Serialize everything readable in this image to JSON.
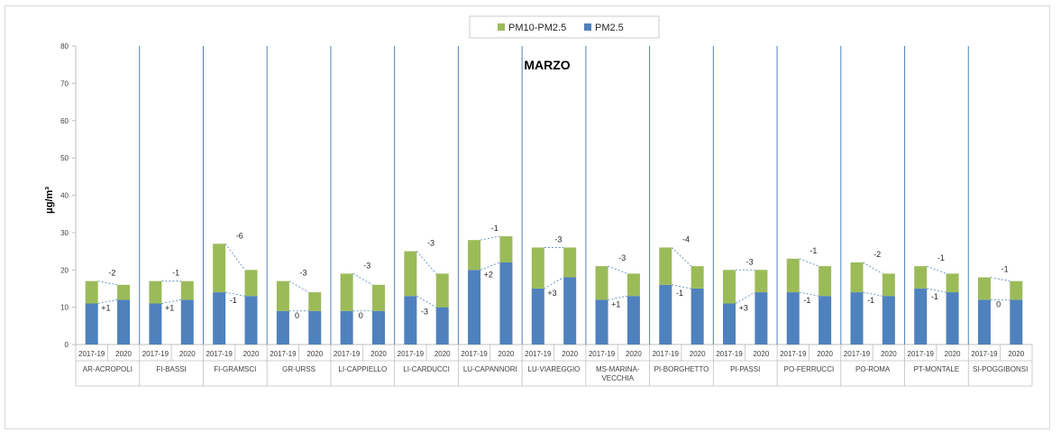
{
  "chart_data": {
    "type": "bar",
    "stacked": true,
    "title": "MARZO",
    "xlabel": "",
    "ylabel": "μg/m³",
    "ylim": [
      0,
      80
    ],
    "yticks": [
      0,
      10,
      20,
      30,
      40,
      50,
      60,
      70,
      80
    ],
    "grid": false,
    "legend_position": "top-center",
    "colors": {
      "PM2.5": "#4f81bd",
      "PM10-PM2.5": "#9bbb59",
      "separator": "#4f81bd"
    },
    "legend_order": [
      "PM10-PM2.5",
      "PM2.5"
    ],
    "periods": [
      "2017-19",
      "2020"
    ],
    "stations": [
      {
        "name": "AR-ACROPOLI",
        "pm25": [
          11,
          12
        ],
        "pm10": [
          17,
          16
        ],
        "diff_coarse": "-2",
        "diff_fine": "+1"
      },
      {
        "name": "FI-BASSI",
        "pm25": [
          11,
          12
        ],
        "pm10": [
          17,
          17
        ],
        "diff_coarse": "-1",
        "diff_fine": "+1"
      },
      {
        "name": "FI-GRAMSCI",
        "pm25": [
          14,
          13
        ],
        "pm10": [
          27,
          20
        ],
        "diff_coarse": "-6",
        "diff_fine": "-1"
      },
      {
        "name": "GR-URSS",
        "pm25": [
          9,
          9
        ],
        "pm10": [
          17,
          14
        ],
        "diff_coarse": "-3",
        "diff_fine": "0"
      },
      {
        "name": "LI-CAPPIELLO",
        "pm25": [
          9,
          9
        ],
        "pm10": [
          19,
          16
        ],
        "diff_coarse": "-3",
        "diff_fine": "0"
      },
      {
        "name": "LI-CARDUCCI",
        "pm25": [
          13,
          10
        ],
        "pm10": [
          25,
          19
        ],
        "diff_coarse": "-3",
        "diff_fine": "-3"
      },
      {
        "name": "LU-CAPANNORI",
        "pm25": [
          20,
          22
        ],
        "pm10": [
          28,
          29
        ],
        "diff_coarse": "-1",
        "diff_fine": "+2"
      },
      {
        "name": "LU-VIAREGGIO",
        "pm25": [
          15,
          18
        ],
        "pm10": [
          26,
          26
        ],
        "diff_coarse": "-3",
        "diff_fine": "+3"
      },
      {
        "name": "MS-MARINA-VECCHIA",
        "name_lines": [
          "MS-MARINA-",
          "VECCHIA"
        ],
        "pm25": [
          12,
          13
        ],
        "pm10": [
          21,
          19
        ],
        "diff_coarse": "-3",
        "diff_fine": "+1"
      },
      {
        "name": "PI-BORGHETTO",
        "pm25": [
          16,
          15
        ],
        "pm10": [
          26,
          21
        ],
        "diff_coarse": "-4",
        "diff_fine": "-1"
      },
      {
        "name": "PI-PASSI",
        "pm25": [
          11,
          14
        ],
        "pm10": [
          20,
          20
        ],
        "diff_coarse": "-3",
        "diff_fine": "+3"
      },
      {
        "name": "PO-FERRUCCI",
        "pm25": [
          14,
          13
        ],
        "pm10": [
          23,
          21
        ],
        "diff_coarse": "-1",
        "diff_fine": "-1"
      },
      {
        "name": "PO-ROMA",
        "pm25": [
          14,
          13
        ],
        "pm10": [
          22,
          19
        ],
        "diff_coarse": "-2",
        "diff_fine": "-1"
      },
      {
        "name": "PT-MONTALE",
        "pm25": [
          15,
          14
        ],
        "pm10": [
          21,
          19
        ],
        "diff_coarse": "-1",
        "diff_fine": "-1"
      },
      {
        "name": "SI-POGGIBONSI",
        "pm25": [
          12,
          12
        ],
        "pm10": [
          18,
          17
        ],
        "diff_coarse": "-1",
        "diff_fine": "0"
      }
    ]
  }
}
